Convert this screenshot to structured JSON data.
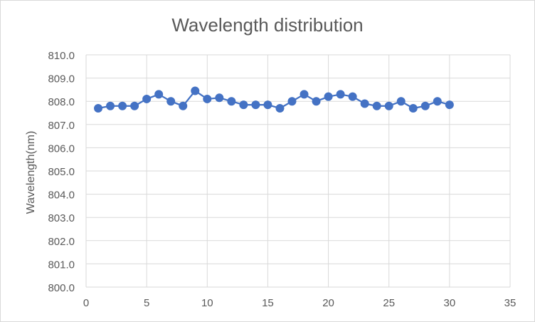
{
  "chart_data": {
    "type": "line",
    "title": "Wavelength distribution",
    "xlabel": "",
    "ylabel": "Wavelength(nm)",
    "x": [
      1,
      2,
      3,
      4,
      5,
      6,
      7,
      8,
      9,
      10,
      11,
      12,
      13,
      14,
      15,
      16,
      17,
      18,
      19,
      20,
      21,
      22,
      23,
      24,
      25,
      26,
      27,
      28,
      29,
      30
    ],
    "series": [
      {
        "name": "Wavelength",
        "values": [
          807.7,
          807.8,
          807.8,
          807.8,
          808.1,
          808.3,
          808.0,
          807.8,
          808.45,
          808.1,
          808.15,
          808.0,
          807.85,
          807.85,
          807.85,
          807.7,
          808.0,
          808.3,
          808.0,
          808.2,
          808.3,
          808.2,
          807.9,
          807.8,
          807.8,
          808.0,
          807.7,
          807.8,
          808.0,
          807.85
        ]
      }
    ],
    "xlim": [
      0,
      35
    ],
    "ylim": [
      800,
      810
    ],
    "x_ticks": [
      0,
      5,
      10,
      15,
      20,
      25,
      30,
      35
    ],
    "y_ticks": [
      800,
      801,
      802,
      803,
      804,
      805,
      806,
      807,
      808,
      809,
      810
    ],
    "x_tick_labels": [
      "0",
      "5",
      "10",
      "15",
      "20",
      "25",
      "30",
      "35"
    ],
    "y_tick_labels": [
      "800.0",
      "801.0",
      "802.0",
      "803.0",
      "804.0",
      "805.0",
      "806.0",
      "807.0",
      "808.0",
      "809.0",
      "810.0"
    ],
    "grid": true,
    "legend": "none",
    "series_color": "#4472c4",
    "grid_color": "#d9d9d9",
    "text_color": "#595959"
  }
}
